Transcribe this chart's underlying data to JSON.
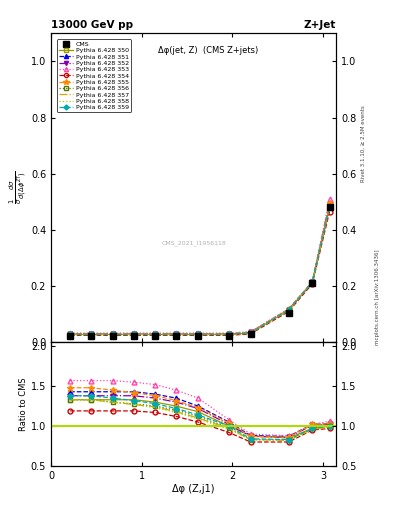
{
  "title_left": "13000 GeV pp",
  "title_right": "Z+Jet",
  "plot_title": "Δφ(jet, Z)  (CMS Z+jets)",
  "xlabel": "Δφ (Z,j1)",
  "ylabel_main": "$\\frac{1}{\\sigma}\\frac{d\\sigma}{d(\\Delta\\phi^{ZT})}$",
  "ylabel_ratio": "Ratio to CMS",
  "right_label_top": "Rivet 3.1.10, ≥ 2.5M events",
  "right_label_bot": "mcplots.cern.ch [arXiv:1306.3436]",
  "watermark": "CMS_2021_I1956118",
  "xlim": [
    0,
    3.14159
  ],
  "ylim_main": [
    0,
    1.1
  ],
  "ylim_ratio": [
    0.5,
    2.05
  ],
  "cms_x": [
    0.21,
    0.44,
    0.68,
    0.91,
    1.15,
    1.38,
    1.62,
    1.96,
    2.2,
    2.62,
    2.88,
    3.07
  ],
  "cms_y": [
    0.021,
    0.021,
    0.021,
    0.021,
    0.021,
    0.021,
    0.022,
    0.022,
    0.029,
    0.104,
    0.21,
    0.48
  ],
  "series": [
    {
      "label": "Pythia 6.428 350",
      "color": "#999900",
      "linestyle": "-",
      "marker": "s",
      "fillstyle": "none",
      "ms": 3.5,
      "main_y": [
        0.028,
        0.028,
        0.028,
        0.028,
        0.028,
        0.028,
        0.028,
        0.028,
        0.033,
        0.115,
        0.215,
        0.48
      ],
      "ratio_y": [
        1.33,
        1.33,
        1.33,
        1.33,
        1.3,
        1.25,
        1.18,
        1.0,
        0.88,
        0.85,
        0.97,
        1.0
      ]
    },
    {
      "label": "Pythia 6.428 351",
      "color": "#0000ee",
      "linestyle": "--",
      "marker": "^",
      "fillstyle": "full",
      "ms": 3.5,
      "main_y": [
        0.03,
        0.03,
        0.03,
        0.03,
        0.03,
        0.03,
        0.03,
        0.03,
        0.036,
        0.118,
        0.215,
        0.495
      ],
      "ratio_y": [
        1.43,
        1.43,
        1.43,
        1.43,
        1.4,
        1.35,
        1.25,
        1.05,
        0.88,
        0.87,
        1.02,
        1.03
      ]
    },
    {
      "label": "Pythia 6.428 352",
      "color": "#8800aa",
      "linestyle": "-.",
      "marker": "v",
      "fillstyle": "full",
      "ms": 3.5,
      "main_y": [
        0.029,
        0.029,
        0.029,
        0.029,
        0.029,
        0.029,
        0.029,
        0.029,
        0.035,
        0.116,
        0.213,
        0.49
      ],
      "ratio_y": [
        1.38,
        1.38,
        1.38,
        1.38,
        1.35,
        1.3,
        1.22,
        1.02,
        0.87,
        0.86,
        1.01,
        1.02
      ]
    },
    {
      "label": "Pythia 6.428 353",
      "color": "#ff44aa",
      "linestyle": ":",
      "marker": "^",
      "fillstyle": "none",
      "ms": 3.5,
      "main_y": [
        0.033,
        0.033,
        0.033,
        0.033,
        0.033,
        0.033,
        0.033,
        0.033,
        0.038,
        0.12,
        0.215,
        0.51
      ],
      "ratio_y": [
        1.57,
        1.57,
        1.57,
        1.55,
        1.52,
        1.45,
        1.35,
        1.08,
        0.9,
        0.88,
        1.02,
        1.06
      ]
    },
    {
      "label": "Pythia 6.428 354",
      "color": "#cc0000",
      "linestyle": "--",
      "marker": "o",
      "fillstyle": "none",
      "ms": 3.5,
      "main_y": [
        0.025,
        0.025,
        0.025,
        0.025,
        0.025,
        0.025,
        0.025,
        0.025,
        0.03,
        0.11,
        0.208,
        0.465
      ],
      "ratio_y": [
        1.19,
        1.19,
        1.19,
        1.19,
        1.17,
        1.12,
        1.05,
        0.92,
        0.8,
        0.8,
        0.95,
        0.97
      ]
    },
    {
      "label": "Pythia 6.428 355",
      "color": "#ff8800",
      "linestyle": "--",
      "marker": "*",
      "fillstyle": "full",
      "ms": 4.5,
      "main_y": [
        0.031,
        0.031,
        0.031,
        0.031,
        0.031,
        0.031,
        0.031,
        0.031,
        0.036,
        0.118,
        0.215,
        0.495
      ],
      "ratio_y": [
        1.48,
        1.48,
        1.45,
        1.42,
        1.38,
        1.32,
        1.23,
        1.04,
        0.87,
        0.86,
        1.02,
        1.03
      ]
    },
    {
      "label": "Pythia 6.428 356",
      "color": "#557700",
      "linestyle": ":",
      "marker": "s",
      "fillstyle": "none",
      "ms": 3.5,
      "main_y": [
        0.028,
        0.028,
        0.028,
        0.028,
        0.028,
        0.028,
        0.028,
        0.028,
        0.033,
        0.114,
        0.213,
        0.48
      ],
      "ratio_y": [
        1.33,
        1.33,
        1.3,
        1.28,
        1.25,
        1.2,
        1.12,
        0.98,
        0.83,
        0.83,
        0.97,
        1.0
      ]
    },
    {
      "label": "Pythia 6.428 357",
      "color": "#ccaa00",
      "linestyle": "-.",
      "marker": "None",
      "fillstyle": "none",
      "ms": 3.5,
      "main_y": [
        0.028,
        0.028,
        0.028,
        0.028,
        0.028,
        0.028,
        0.028,
        0.028,
        0.033,
        0.115,
        0.213,
        0.48
      ],
      "ratio_y": [
        1.33,
        1.33,
        1.3,
        1.27,
        1.24,
        1.18,
        1.1,
        0.97,
        0.83,
        0.82,
        0.96,
        0.99
      ]
    },
    {
      "label": "Pythia 6.428 358",
      "color": "#aacc00",
      "linestyle": ":",
      "marker": "None",
      "fillstyle": "none",
      "ms": 3.5,
      "main_y": [
        0.028,
        0.028,
        0.028,
        0.028,
        0.028,
        0.028,
        0.028,
        0.028,
        0.033,
        0.114,
        0.213,
        0.48
      ],
      "ratio_y": [
        1.33,
        1.33,
        1.3,
        1.27,
        1.23,
        1.17,
        1.09,
        0.96,
        0.83,
        0.82,
        0.96,
        0.99
      ]
    },
    {
      "label": "Pythia 6.428 359",
      "color": "#00aaaa",
      "linestyle": "--",
      "marker": "D",
      "fillstyle": "full",
      "ms": 3.0,
      "main_y": [
        0.029,
        0.029,
        0.029,
        0.029,
        0.029,
        0.029,
        0.029,
        0.029,
        0.034,
        0.115,
        0.213,
        0.482
      ],
      "ratio_y": [
        1.38,
        1.38,
        1.35,
        1.32,
        1.28,
        1.22,
        1.14,
        1.0,
        0.84,
        0.83,
        0.97,
        1.0
      ]
    }
  ]
}
